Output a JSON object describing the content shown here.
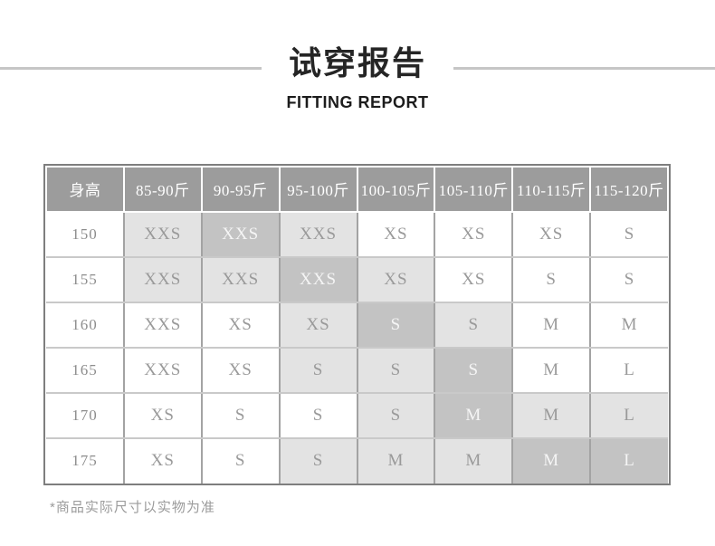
{
  "chart_data": {
    "type": "table",
    "title": "试穿报告",
    "subtitle": "FITTING REPORT",
    "columns": [
      "身高",
      "85-90斤",
      "90-95斤",
      "95-100斤",
      "100-105斤",
      "105-110斤",
      "110-115斤",
      "115-120斤"
    ],
    "rows": [
      {
        "height": "150",
        "cells": [
          {
            "size": "XXS",
            "shade": "light"
          },
          {
            "size": "XXS",
            "shade": "dark"
          },
          {
            "size": "XXS",
            "shade": "light"
          },
          {
            "size": "XS",
            "shade": "none"
          },
          {
            "size": "XS",
            "shade": "none"
          },
          {
            "size": "XS",
            "shade": "none"
          },
          {
            "size": "S",
            "shade": "none"
          }
        ]
      },
      {
        "height": "155",
        "cells": [
          {
            "size": "XXS",
            "shade": "light"
          },
          {
            "size": "XXS",
            "shade": "light"
          },
          {
            "size": "XXS",
            "shade": "dark"
          },
          {
            "size": "XS",
            "shade": "light"
          },
          {
            "size": "XS",
            "shade": "none"
          },
          {
            "size": "S",
            "shade": "none"
          },
          {
            "size": "S",
            "shade": "none"
          }
        ]
      },
      {
        "height": "160",
        "cells": [
          {
            "size": "XXS",
            "shade": "none"
          },
          {
            "size": "XS",
            "shade": "none"
          },
          {
            "size": "XS",
            "shade": "light"
          },
          {
            "size": "S",
            "shade": "dark"
          },
          {
            "size": "S",
            "shade": "light"
          },
          {
            "size": "M",
            "shade": "none"
          },
          {
            "size": "M",
            "shade": "none"
          }
        ]
      },
      {
        "height": "165",
        "cells": [
          {
            "size": "XXS",
            "shade": "none"
          },
          {
            "size": "XS",
            "shade": "none"
          },
          {
            "size": "S",
            "shade": "light"
          },
          {
            "size": "S",
            "shade": "light"
          },
          {
            "size": "S",
            "shade": "dark"
          },
          {
            "size": "M",
            "shade": "none"
          },
          {
            "size": "L",
            "shade": "none"
          }
        ]
      },
      {
        "height": "170",
        "cells": [
          {
            "size": "XS",
            "shade": "none"
          },
          {
            "size": "S",
            "shade": "none"
          },
          {
            "size": "S",
            "shade": "none"
          },
          {
            "size": "S",
            "shade": "light"
          },
          {
            "size": "M",
            "shade": "dark"
          },
          {
            "size": "M",
            "shade": "light"
          },
          {
            "size": "L",
            "shade": "light"
          }
        ]
      },
      {
        "height": "175",
        "cells": [
          {
            "size": "XS",
            "shade": "none"
          },
          {
            "size": "S",
            "shade": "none"
          },
          {
            "size": "S",
            "shade": "light"
          },
          {
            "size": "M",
            "shade": "light"
          },
          {
            "size": "M",
            "shade": "light"
          },
          {
            "size": "M",
            "shade": "dark"
          },
          {
            "size": "L",
            "shade": "dark"
          }
        ]
      }
    ],
    "shade_colors": {
      "none": "#ffffff",
      "light": "#e3e3e3",
      "dark": "#c3c3c3"
    }
  },
  "footnote": "*商品实际尺寸以实物为准",
  "colors": {
    "header_bg": "#9c9c9c",
    "header_text": "#ffffff",
    "cell_light": "#e3e3e3",
    "cell_dark": "#c3c3c3",
    "cell_text": "#9a9a9a",
    "cell_text_on_dark": "#f5f5f5",
    "outer_border": "#7e7e7e",
    "grid_vertical": "#a3a3a3",
    "grid_horizontal": "#c9c9c9",
    "title_text": "#252525",
    "decorative_line": "#c6c6c6",
    "footnote_text": "#9b9b9b"
  }
}
